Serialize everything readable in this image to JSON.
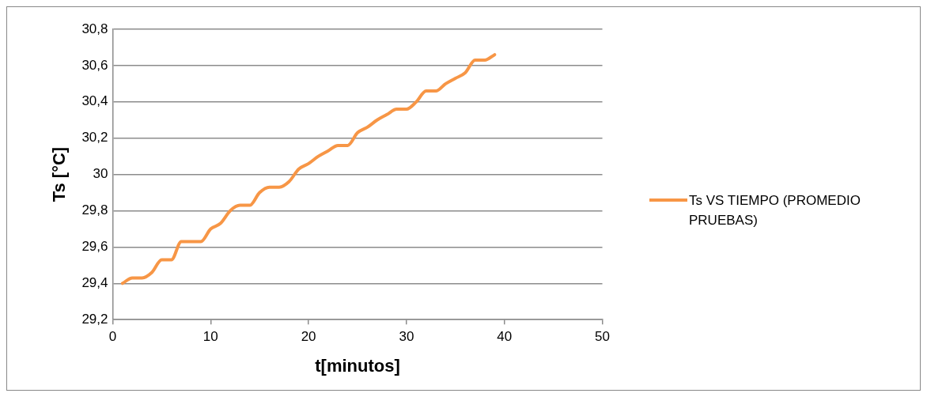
{
  "chart_data": {
    "type": "line",
    "xlabel": "t[minutos]",
    "ylabel": "Ts [°C]",
    "x": [
      1,
      2,
      3,
      4,
      5,
      6,
      7,
      8,
      9,
      10,
      11,
      12,
      13,
      14,
      15,
      16,
      17,
      18,
      19,
      20,
      21,
      22,
      23,
      24,
      25,
      26,
      27,
      28,
      29,
      30,
      31,
      32,
      33,
      34,
      35,
      36,
      37,
      38,
      39
    ],
    "series": [
      {
        "name": "Ts VS TIEMPO (PROMEDIO PRUEBAS)",
        "color": "#f79646",
        "values": [
          29.4,
          29.43,
          29.43,
          29.46,
          29.53,
          29.53,
          29.63,
          29.63,
          29.63,
          29.7,
          29.73,
          29.8,
          29.83,
          29.83,
          29.9,
          29.93,
          29.93,
          29.96,
          30.03,
          30.06,
          30.1,
          30.13,
          30.16,
          30.16,
          30.23,
          30.26,
          30.3,
          30.33,
          30.36,
          30.36,
          30.4,
          30.46,
          30.46,
          30.5,
          30.53,
          30.56,
          30.63,
          30.63,
          30.66
        ]
      }
    ],
    "xlim": [
      0,
      50
    ],
    "xticks": [
      0,
      10,
      20,
      30,
      40,
      50
    ],
    "ylim": [
      29.2,
      30.8
    ],
    "yticks": [
      {
        "value": 29.2,
        "label": "29,2"
      },
      {
        "value": 29.4,
        "label": "29,4"
      },
      {
        "value": 29.6,
        "label": "29,6"
      },
      {
        "value": 29.8,
        "label": "29,8"
      },
      {
        "value": 30,
        "label": "30"
      },
      {
        "value": 30.2,
        "label": "30,2"
      },
      {
        "value": 30.4,
        "label": "30,4"
      },
      {
        "value": 30.6,
        "label": "30,6"
      },
      {
        "value": 30.8,
        "label": "30,8"
      }
    ],
    "grid": "y",
    "legend": "right",
    "marker": "none",
    "line_style": "solid"
  }
}
